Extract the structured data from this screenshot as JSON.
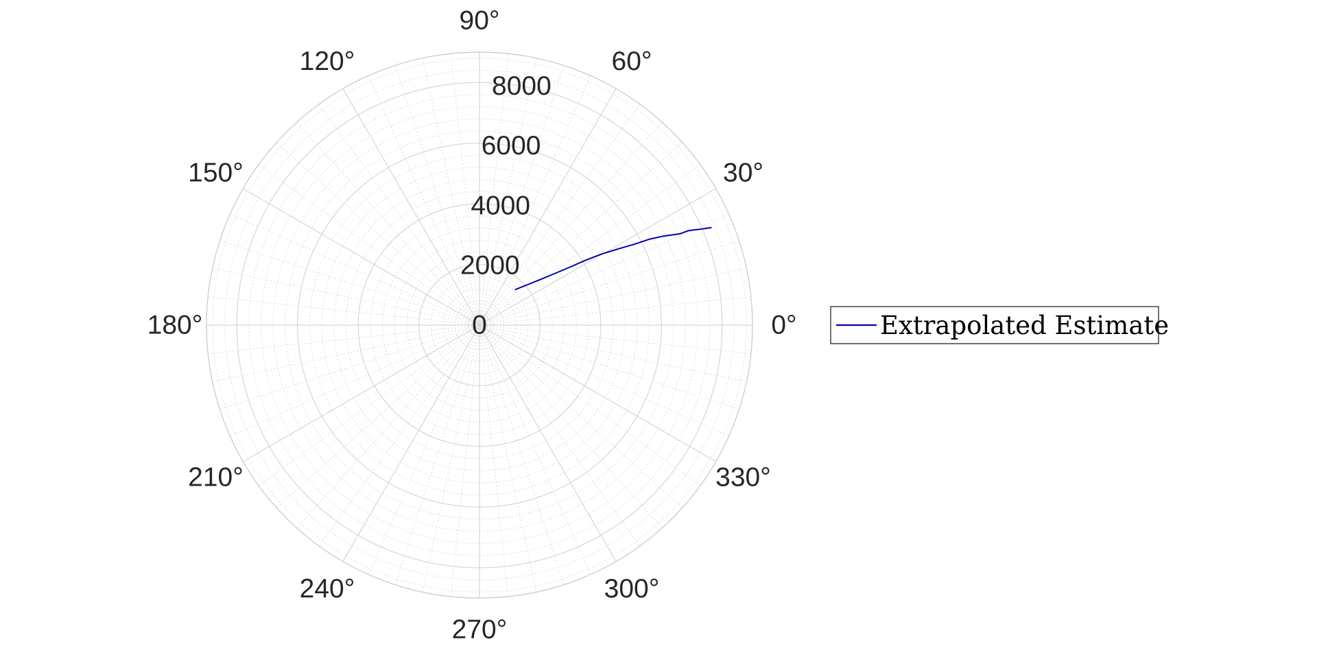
{
  "chart_data": {
    "type": "line",
    "coordinate_system": "polar",
    "title": "",
    "theta_unit": "degrees",
    "theta_ticks": [
      0,
      30,
      60,
      90,
      120,
      150,
      180,
      210,
      240,
      270,
      300,
      330
    ],
    "theta_tick_labels": [
      "0°",
      "30°",
      "60°",
      "90°",
      "120°",
      "150°",
      "180°",
      "210°",
      "240°",
      "270°",
      "300°",
      "330°"
    ],
    "r_lim": [
      0,
      9000
    ],
    "r_ticks": [
      0,
      2000,
      4000,
      6000,
      8000
    ],
    "r_tick_labels": [
      "0",
      "2000",
      "4000",
      "6000",
      "8000"
    ],
    "r_tick_label_angle_deg": 80,
    "grid": true,
    "minor_grid": true,
    "legend_position": "right",
    "series": [
      {
        "name": "Extrapolated Estimate",
        "color": "#0000aa",
        "theta_deg": [
          45.0,
          40.6,
          37.2,
          34.7,
          32.6,
          31.5,
          30.2,
          28.8,
          27.5,
          26.8,
          25.8,
          24.5,
          24.3,
          23.5,
          22.8
        ],
        "r": [
          1650,
          2017,
          2452,
          2939,
          3566,
          4078,
          4668,
          5204,
          5800,
          6289,
          6745,
          7260,
          7576,
          7925,
          8300
        ]
      }
    ]
  }
}
